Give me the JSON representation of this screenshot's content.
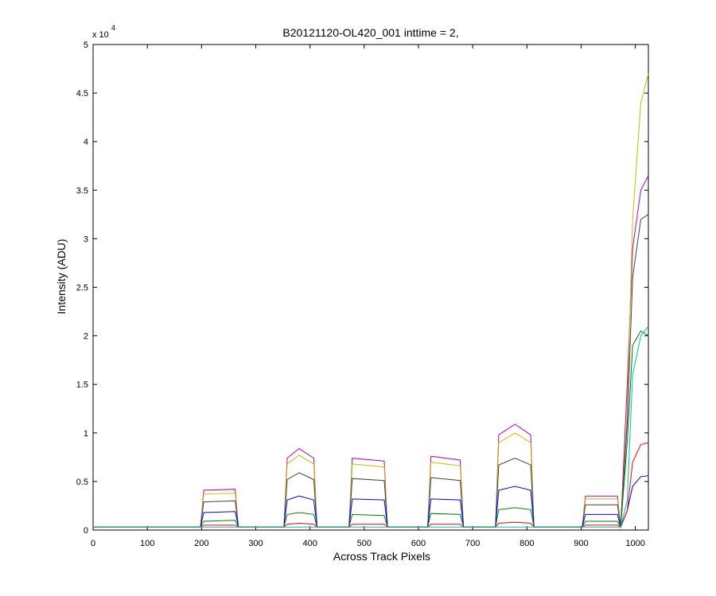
{
  "chart_data": {
    "type": "line",
    "title": "B20121120-OL420_001 inttime = 2,",
    "x_label": "Across Track Pixels",
    "y_label": "Intensity (ADU)",
    "y_multiplier": {
      "base": "x 10",
      "exponent": "4"
    },
    "xlim": [
      0,
      1024
    ],
    "ylim": [
      0,
      5
    ],
    "xticks": [
      0,
      100,
      200,
      300,
      400,
      500,
      600,
      700,
      800,
      900,
      1000
    ],
    "yticks": [
      0,
      0.5,
      1,
      1.5,
      2,
      2.5,
      3,
      3.5,
      4,
      4.5,
      5
    ],
    "x": [
      0,
      198,
      204,
      262,
      268,
      352,
      358,
      380,
      407,
      413,
      472,
      478,
      537,
      543,
      617,
      623,
      677,
      683,
      742,
      748,
      778,
      807,
      813,
      902,
      908,
      967,
      973,
      985,
      995,
      1010,
      1024
    ],
    "series": [
      {
        "color": "#bf00bf",
        "values": [
          0.03,
          0.03,
          0.41,
          0.42,
          0.03,
          0.03,
          0.74,
          0.84,
          0.74,
          0.03,
          0.03,
          0.74,
          0.71,
          0.03,
          0.03,
          0.76,
          0.72,
          0.03,
          0.03,
          0.98,
          1.09,
          0.98,
          0.03,
          0.03,
          0.35,
          0.35,
          0.03,
          1.5,
          2.9,
          3.5,
          3.65
        ]
      },
      {
        "color": "#bfbf00",
        "values": [
          0.03,
          0.03,
          0.37,
          0.38,
          0.03,
          0.03,
          0.68,
          0.77,
          0.68,
          0.03,
          0.03,
          0.68,
          0.65,
          0.03,
          0.03,
          0.7,
          0.66,
          0.03,
          0.03,
          0.9,
          1.0,
          0.9,
          0.03,
          0.03,
          0.32,
          0.32,
          0.03,
          1.2,
          3.2,
          4.4,
          4.7
        ]
      },
      {
        "color": "#404040",
        "values": [
          0.03,
          0.03,
          0.29,
          0.3,
          0.03,
          0.03,
          0.52,
          0.59,
          0.52,
          0.03,
          0.03,
          0.53,
          0.51,
          0.03,
          0.03,
          0.54,
          0.51,
          0.03,
          0.03,
          0.67,
          0.74,
          0.67,
          0.03,
          0.03,
          0.26,
          0.26,
          0.03,
          1.1,
          2.6,
          3.2,
          3.25
        ]
      },
      {
        "color": "#0000ff",
        "values": [
          0.03,
          0.03,
          0.18,
          0.19,
          0.03,
          0.03,
          0.31,
          0.35,
          0.31,
          0.03,
          0.03,
          0.32,
          0.31,
          0.03,
          0.03,
          0.32,
          0.31,
          0.03,
          0.03,
          0.41,
          0.45,
          0.41,
          0.03,
          0.03,
          0.16,
          0.16,
          0.03,
          0.2,
          0.45,
          0.55,
          0.56
        ]
      },
      {
        "color": "#008000",
        "values": [
          0.03,
          0.03,
          0.09,
          0.1,
          0.03,
          0.03,
          0.16,
          0.18,
          0.16,
          0.03,
          0.03,
          0.16,
          0.15,
          0.03,
          0.03,
          0.17,
          0.16,
          0.03,
          0.03,
          0.21,
          0.23,
          0.21,
          0.03,
          0.03,
          0.09,
          0.09,
          0.03,
          0.9,
          1.9,
          2.05,
          2.0
        ]
      },
      {
        "color": "#ff0000",
        "values": [
          0.03,
          0.03,
          0.05,
          0.05,
          0.03,
          0.03,
          0.06,
          0.07,
          0.06,
          0.03,
          0.03,
          0.06,
          0.06,
          0.03,
          0.03,
          0.06,
          0.06,
          0.03,
          0.03,
          0.07,
          0.08,
          0.07,
          0.03,
          0.03,
          0.05,
          0.05,
          0.03,
          0.2,
          0.7,
          0.88,
          0.9
        ]
      },
      {
        "color": "#00bfbf",
        "values": [
          0.03,
          0.03,
          0.03,
          0.03,
          0.03,
          0.03,
          0.03,
          0.03,
          0.03,
          0.03,
          0.03,
          0.03,
          0.03,
          0.03,
          0.03,
          0.03,
          0.03,
          0.03,
          0.03,
          0.03,
          0.03,
          0.03,
          0.03,
          0.03,
          0.03,
          0.03,
          0.03,
          0.3,
          1.6,
          2.0,
          2.1
        ]
      }
    ]
  }
}
